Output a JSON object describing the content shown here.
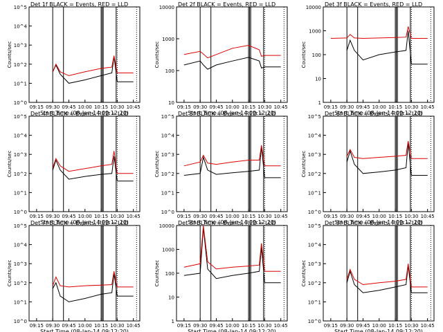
{
  "figure": {
    "common": {
      "xlabel": "Start Time (08-Jan-14 09:12:20)",
      "ylabel": "Counts/sec",
      "x_ticks": [
        "09:15",
        "09:30",
        "09:45",
        "10:00",
        "10:15",
        "10:30",
        "10:45"
      ],
      "legend_text": "BLACK = Events, RED = LLD",
      "black_color": "#000000",
      "red_color": "#dd0000"
    }
  },
  "chart_data": [
    {
      "type": "line",
      "title": "Det 1f",
      "title_full": "Det 1f BLACK = Events, RED = LLD",
      "y_scale": "log",
      "y_tick_labels": [
        "10^0",
        "10^1",
        "10^2",
        "10^3",
        "10^4",
        "10^5"
      ],
      "y_range": [
        1,
        100000
      ],
      "x": [
        "09:15",
        "09:30",
        "09:33",
        "09:37",
        "09:45",
        "10:00",
        "10:15",
        "10:25",
        "10:27",
        "10:30",
        "10:45"
      ],
      "series": [
        {
          "name": "Events",
          "color": "#000000",
          "values": [
            null,
            40,
            90,
            30,
            10,
            15,
            25,
            35,
            250,
            12,
            12
          ]
        },
        {
          "name": "LLD",
          "color": "#dd0000",
          "values": [
            null,
            40,
            100,
            40,
            25,
            40,
            60,
            70,
            280,
            35,
            35
          ]
        }
      ]
    },
    {
      "type": "line",
      "title": "Det 2f",
      "title_full": "Det 2f BLACK = Events, RED = LLD",
      "y_scale": "log",
      "y_tick_labels": [
        "10",
        "100",
        "1000",
        "10000"
      ],
      "y_range": [
        10,
        10000
      ],
      "x": [
        "09:15",
        "09:30",
        "09:33",
        "09:37",
        "09:45",
        "10:00",
        "10:15",
        "10:25",
        "10:27",
        "10:30",
        "10:45"
      ],
      "series": [
        {
          "name": "Events",
          "color": "#000000",
          "values": [
            150,
            200,
            150,
            110,
            150,
            200,
            260,
            200,
            120,
            130,
            130
          ]
        },
        {
          "name": "LLD",
          "color": "#dd0000",
          "values": [
            320,
            400,
            330,
            250,
            320,
            500,
            620,
            450,
            280,
            300,
            300
          ]
        }
      ]
    },
    {
      "type": "line",
      "title": "Det 3f",
      "title_full": "Det 3f BLACK = Events, RED = LLD",
      "y_scale": "log",
      "y_tick_labels": [
        "1",
        "10",
        "100",
        "1000",
        "10000"
      ],
      "y_range": [
        1,
        10000
      ],
      "x": [
        "09:15",
        "09:30",
        "09:33",
        "09:37",
        "09:45",
        "10:00",
        "10:15",
        "10:25",
        "10:27",
        "10:30",
        "10:45"
      ],
      "series": [
        {
          "name": "Events",
          "color": "#000000",
          "values": [
            null,
            150,
            400,
            150,
            60,
            100,
            130,
            150,
            1000,
            40,
            40
          ]
        },
        {
          "name": "LLD",
          "color": "#dd0000",
          "values": [
            480,
            500,
            700,
            500,
            480,
            500,
            520,
            540,
            1500,
            480,
            480
          ]
        }
      ]
    },
    {
      "type": "line",
      "title": "Det 4f",
      "title_full": "Det 4f BLACK = Events, RED = LLD",
      "y_scale": "log",
      "y_tick_labels": [
        "10^0",
        "10^1",
        "10^2",
        "10^3",
        "10^4",
        "10^5"
      ],
      "y_range": [
        1,
        100000
      ],
      "x": [
        "09:15",
        "09:30",
        "09:33",
        "09:37",
        "09:45",
        "10:00",
        "10:15",
        "10:25",
        "10:27",
        "10:30",
        "10:45"
      ],
      "series": [
        {
          "name": "Events",
          "color": "#000000",
          "values": [
            null,
            150,
            500,
            150,
            50,
            70,
            90,
            100,
            800,
            40,
            40
          ]
        },
        {
          "name": "LLD",
          "color": "#dd0000",
          "values": [
            null,
            200,
            600,
            250,
            130,
            180,
            250,
            300,
            1500,
            100,
            100
          ]
        }
      ]
    },
    {
      "type": "line",
      "title": "Det 5f",
      "title_full": "Det 5f BLACK = Events, RED = LLD",
      "y_scale": "log",
      "y_tick_labels": [
        "10^0",
        "10^1",
        "10^2",
        "10^3",
        "10^4",
        "10^5"
      ],
      "y_range": [
        1,
        100000
      ],
      "x": [
        "09:15",
        "09:30",
        "09:33",
        "09:37",
        "09:45",
        "10:00",
        "10:15",
        "10:25",
        "10:27",
        "10:30",
        "10:45"
      ],
      "series": [
        {
          "name": "Events",
          "color": "#000000",
          "values": [
            80,
            100,
            700,
            150,
            90,
            110,
            130,
            150,
            2500,
            60,
            60
          ]
        },
        {
          "name": "LLD",
          "color": "#dd0000",
          "values": [
            250,
            400,
            900,
            350,
            300,
            400,
            500,
            500,
            3000,
            250,
            250
          ]
        }
      ]
    },
    {
      "type": "line",
      "title": "Det 6f",
      "title_full": "Det 6f BLACK = Events, RED = LLD",
      "y_scale": "log",
      "y_tick_labels": [
        "10^0",
        "10^1",
        "10^2",
        "10^3",
        "10^4",
        "10^5"
      ],
      "y_range": [
        1,
        100000
      ],
      "x": [
        "09:15",
        "09:30",
        "09:33",
        "09:37",
        "09:45",
        "10:00",
        "10:15",
        "10:25",
        "10:27",
        "10:30",
        "10:45"
      ],
      "series": [
        {
          "name": "Events",
          "color": "#000000",
          "values": [
            null,
            400,
            1500,
            300,
            100,
            120,
            150,
            200,
            4000,
            80,
            80
          ]
        },
        {
          "name": "LLD",
          "color": "#dd0000",
          "values": [
            null,
            800,
            1800,
            700,
            600,
            700,
            800,
            900,
            5000,
            600,
            600
          ]
        }
      ]
    },
    {
      "type": "line",
      "title": "Det 7f",
      "title_full": "Det 7f BLACK = Events, RED = LLD",
      "y_scale": "log",
      "y_tick_labels": [
        "10^0",
        "10^1",
        "10^2",
        "10^3",
        "10^4",
        "10^5"
      ],
      "y_range": [
        1,
        100000
      ],
      "x": [
        "09:15",
        "09:30",
        "09:33",
        "09:37",
        "09:45",
        "10:00",
        "10:15",
        "10:25",
        "10:27",
        "10:30",
        "10:45"
      ],
      "series": [
        {
          "name": "Events",
          "color": "#000000",
          "values": [
            null,
            50,
            100,
            20,
            10,
            15,
            25,
            30,
            300,
            20,
            20
          ]
        },
        {
          "name": "LLD",
          "color": "#dd0000",
          "values": [
            null,
            70,
            200,
            70,
            60,
            70,
            75,
            80,
            400,
            60,
            60
          ]
        }
      ]
    },
    {
      "type": "line",
      "title": "Det 8f",
      "title_full": "Det 8f BLACK = Events, RED = LLD",
      "y_scale": "log",
      "y_tick_labels": [
        "1",
        "10",
        "100",
        "1000",
        "10000"
      ],
      "y_range": [
        1,
        10000
      ],
      "x": [
        "09:15",
        "09:30",
        "09:33",
        "09:37",
        "09:45",
        "10:00",
        "10:15",
        "10:25",
        "10:27",
        "10:30",
        "10:45"
      ],
      "series": [
        {
          "name": "Events",
          "color": "#000000",
          "values": [
            80,
            100,
            8000,
            150,
            60,
            80,
            100,
            120,
            1200,
            40,
            40
          ]
        },
        {
          "name": "LLD",
          "color": "#dd0000",
          "values": [
            180,
            250,
            10000,
            300,
            150,
            180,
            200,
            220,
            1800,
            120,
            120
          ]
        }
      ]
    },
    {
      "type": "line",
      "title": "Det 9f",
      "title_full": "Det 9f BLACK = Events, RED = LLD",
      "y_scale": "log",
      "y_tick_labels": [
        "10^0",
        "10^1",
        "10^2",
        "10^3",
        "10^4",
        "10^5"
      ],
      "y_range": [
        1,
        100000
      ],
      "x": [
        "09:15",
        "09:30",
        "09:33",
        "09:37",
        "09:45",
        "10:00",
        "10:15",
        "10:25",
        "10:27",
        "10:30",
        "10:45"
      ],
      "series": [
        {
          "name": "Events",
          "color": "#000000",
          "values": [
            null,
            100,
            400,
            80,
            30,
            40,
            60,
            80,
            800,
            30,
            30
          ]
        },
        {
          "name": "LLD",
          "color": "#dd0000",
          "values": [
            null,
            150,
            500,
            150,
            80,
            100,
            120,
            150,
            1000,
            60,
            60
          ]
        }
      ]
    }
  ]
}
